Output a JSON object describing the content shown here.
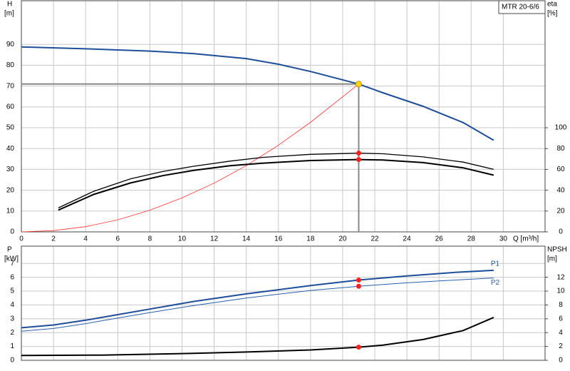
{
  "chart_data": [
    {
      "type": "line",
      "title": "MTR 20-6/6",
      "xlabel": "Q [m³/h]",
      "ylabel": "H",
      "yunit": "[m]",
      "y2label": "eta",
      "y2unit": "[%]",
      "xlim": [
        0,
        32.6
      ],
      "xticks": [
        0,
        2,
        4,
        6,
        8,
        10,
        12,
        14,
        16,
        18,
        20,
        22,
        24,
        26,
        28,
        30
      ],
      "ylim": [
        0,
        111
      ],
      "yticks": [
        0,
        10,
        20,
        30,
        40,
        50,
        60,
        70,
        80,
        90
      ],
      "y2lim": [
        0,
        222
      ],
      "y2ticks": [
        0,
        20,
        40,
        60,
        80,
        100
      ],
      "grid": true,
      "x_labels": true,
      "series": [
        {
          "color": "#1f4e99",
          "width": 2,
          "x": [
            0,
            4,
            8,
            10.7,
            14,
            16,
            18,
            21,
            22.5,
            25,
            27.5,
            29.4
          ],
          "values": [
            88.8,
            87.9,
            86.8,
            85.6,
            83.2,
            80.5,
            77,
            71,
            66.8,
            60.3,
            52.5,
            44
          ]
        },
        {
          "color": "#ff3030",
          "width": 0.8,
          "x": [
            0,
            2,
            4,
            6,
            8,
            10,
            12,
            14,
            16,
            18,
            21
          ],
          "values": [
            0,
            0.6,
            2.5,
            5.8,
            10.4,
            16.3,
            23.4,
            31.8,
            41.6,
            52.6,
            71
          ]
        },
        {
          "color": "#000000",
          "width": 1.3,
          "axis": "y2",
          "x": [
            2.3,
            4.5,
            6.8,
            8.8,
            10.7,
            13,
            15,
            18,
            21,
            22.5,
            25,
            27.5,
            29.4
          ],
          "values": [
            23,
            39,
            51,
            58,
            63,
            68,
            71.5,
            74.5,
            75.6,
            75,
            72,
            67,
            60
          ]
        },
        {
          "color": "#000000",
          "width": 2,
          "axis": "y2",
          "x": [
            2.3,
            4.5,
            6.8,
            8.8,
            10.7,
            13,
            15,
            18,
            21,
            22.5,
            25,
            27.5,
            29.4
          ],
          "values": [
            21,
            36,
            47,
            54,
            59,
            63.5,
            66,
            68.5,
            69.5,
            69,
            66.5,
            61.5,
            54.5
          ]
        }
      ],
      "markers": [
        {
          "x": 21,
          "y": 71,
          "color": "#ffd700",
          "guide": true
        },
        {
          "x": 21,
          "y": 75.6,
          "color": "#ff2020",
          "axis": "y2"
        },
        {
          "x": 21,
          "y": 69.5,
          "color": "#ff2020",
          "axis": "y2"
        }
      ]
    },
    {
      "type": "line",
      "ylabel": "P",
      "yunit": "[kW]",
      "y2label": "NPSH",
      "y2unit": "[m]",
      "xlim": [
        0,
        32.6
      ],
      "xticks": [
        0,
        2,
        4,
        6,
        8,
        10,
        12,
        14,
        16,
        18,
        20,
        22,
        24,
        26,
        28,
        30
      ],
      "ylim": [
        0,
        8.25
      ],
      "yticks": [
        0,
        1,
        2,
        3,
        4,
        5,
        6,
        7
      ],
      "y2lim": [
        0,
        16.5
      ],
      "y2ticks": [
        0,
        2,
        4,
        6,
        8,
        10,
        12
      ],
      "grid": true,
      "x_labels": false,
      "series": [
        {
          "name": "P1",
          "color": "#1f4e99",
          "width": 2,
          "x": [
            0,
            2,
            4,
            6,
            8,
            10.7,
            14,
            18,
            21,
            24,
            27,
            29.4
          ],
          "values": [
            2.35,
            2.55,
            2.9,
            3.3,
            3.7,
            4.25,
            4.8,
            5.4,
            5.8,
            6.1,
            6.35,
            6.5
          ]
        },
        {
          "name": "P2",
          "color": "#2a5fa8",
          "width": 1,
          "x": [
            0,
            2,
            4,
            6,
            8,
            10.7,
            14,
            18,
            21,
            24,
            27,
            29.4
          ],
          "values": [
            2.1,
            2.3,
            2.65,
            3.05,
            3.45,
            3.95,
            4.5,
            5.05,
            5.35,
            5.6,
            5.8,
            5.95
          ]
        },
        {
          "color": "#000000",
          "width": 2,
          "axis": "y2",
          "x": [
            0,
            5,
            10.7,
            14,
            18,
            21,
            22.5,
            25,
            27.5,
            29.4
          ],
          "values": [
            0.7,
            0.75,
            1,
            1.2,
            1.5,
            1.9,
            2.2,
            3,
            4.3,
            6.2
          ]
        }
      ],
      "markers": [
        {
          "x": 21,
          "y": 5.8,
          "color": "#ff2020"
        },
        {
          "x": 21,
          "y": 5.35,
          "color": "#ff2020"
        },
        {
          "x": 21,
          "y": 1.9,
          "color": "#ff2020",
          "axis": "y2"
        }
      ]
    }
  ]
}
